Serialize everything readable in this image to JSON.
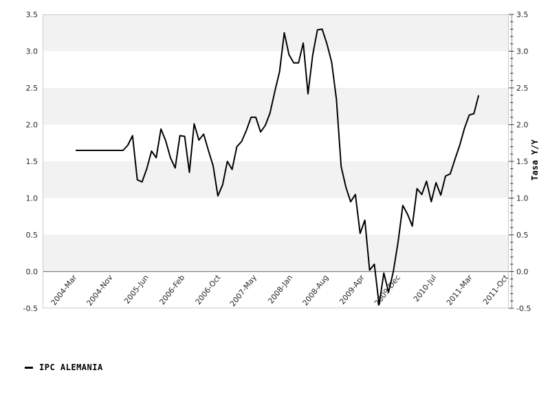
{
  "chart_data": {
    "type": "line",
    "title": "",
    "legend_label": "IPC ALEMANIA",
    "legend_position": "bottom-left",
    "ylabel_right": "Tasa Y/Y",
    "ylim": [
      -0.5,
      3.5
    ],
    "y_major_step": 0.5,
    "y_minor_step": 0.1,
    "grid": "alternating horizontal bands, dark zero line",
    "y_tick_labels": [
      "3.5",
      "3.0",
      "2.5",
      "2.0",
      "1.5",
      "1.0",
      "0.5",
      "0.0",
      "-0.5"
    ],
    "x_tick_labels": [
      "2004-Mar",
      "2004-Nov",
      "2005-Jun",
      "2006-Feb",
      "2006-Oct",
      "2007-May",
      "2008-Jan",
      "2008-Aug",
      "2009-Apr",
      "2009-Dec",
      "2010-Jul",
      "2011-Mar",
      "2011-Oct"
    ],
    "series": [
      {
        "name": "IPC ALEMANIA",
        "color": "#000000",
        "x": [
          "2004-03",
          "2004-04",
          "2004-05",
          "2004-06",
          "2004-07",
          "2004-08",
          "2004-09",
          "2004-10",
          "2004-11",
          "2004-12",
          "2005-01",
          "2005-02",
          "2005-03",
          "2005-04",
          "2005-05",
          "2005-06",
          "2005-07",
          "2005-08",
          "2005-09",
          "2005-10",
          "2005-11",
          "2005-12",
          "2006-01",
          "2006-02",
          "2006-03",
          "2006-04",
          "2006-05",
          "2006-06",
          "2006-07",
          "2006-08",
          "2006-09",
          "2006-10",
          "2006-11",
          "2006-12",
          "2007-01",
          "2007-02",
          "2007-03",
          "2007-04",
          "2007-05",
          "2007-06",
          "2007-07",
          "2007-08",
          "2007-09",
          "2007-10",
          "2007-11",
          "2007-12",
          "2008-01",
          "2008-02",
          "2008-03",
          "2008-04",
          "2008-05",
          "2008-06",
          "2008-07",
          "2008-08",
          "2008-09",
          "2008-10",
          "2008-11",
          "2008-12",
          "2009-01",
          "2009-02",
          "2009-03",
          "2009-04",
          "2009-05",
          "2009-06",
          "2009-07",
          "2009-08",
          "2009-09",
          "2009-10",
          "2009-11",
          "2009-12",
          "2010-01",
          "2010-02",
          "2010-03",
          "2010-04",
          "2010-05",
          "2010-06",
          "2010-07",
          "2010-08",
          "2010-09",
          "2010-10",
          "2010-11",
          "2010-12",
          "2011-01",
          "2011-02",
          "2011-03",
          "2011-04"
        ],
        "values": [
          1.65,
          1.65,
          1.65,
          1.65,
          1.65,
          1.65,
          1.65,
          1.65,
          1.65,
          1.65,
          1.65,
          1.72,
          1.85,
          1.25,
          1.22,
          1.4,
          1.64,
          1.55,
          1.94,
          1.78,
          1.55,
          1.41,
          1.85,
          1.84,
          1.35,
          2.01,
          1.79,
          1.87,
          1.65,
          1.44,
          1.03,
          1.18,
          1.5,
          1.39,
          1.7,
          1.77,
          1.92,
          2.1,
          2.1,
          1.9,
          1.99,
          2.16,
          2.45,
          2.72,
          3.25,
          2.95,
          2.84,
          2.84,
          3.11,
          2.42,
          2.95,
          3.29,
          3.3,
          3.1,
          2.85,
          2.35,
          1.43,
          1.15,
          0.95,
          1.05,
          0.52,
          0.7,
          0.02,
          0.1,
          -0.45,
          -0.02,
          -0.28,
          0.0,
          0.4,
          0.9,
          0.78,
          0.62,
          1.13,
          1.05,
          1.23,
          0.95,
          1.21,
          1.04,
          1.3,
          1.33,
          1.53,
          1.72,
          1.95,
          2.13,
          2.15,
          2.4
        ]
      }
    ],
    "colors": {
      "line": "#000000",
      "band": "#f2f2f2",
      "plot_border": "#c9c9c9",
      "zero_line": "#808080",
      "axis_spine": "#8a8a8a",
      "tick": "#333333",
      "text": "#262626"
    }
  }
}
